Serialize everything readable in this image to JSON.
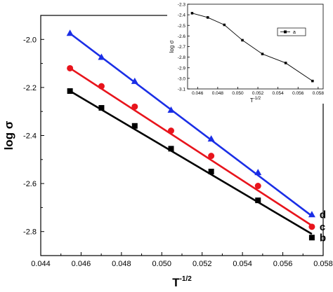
{
  "chart_data": [
    {
      "type": "line",
      "xlabel": "T",
      "xlabel_sup": "-1/2",
      "ylabel": "log σ",
      "xlim": [
        0.044,
        0.058
      ],
      "ylim": [
        -2.9,
        -1.9
      ],
      "x_ticks": [
        "0.044",
        "0.046",
        "0.048",
        "0.050",
        "0.052",
        "0.054",
        "0.056",
        "0.058"
      ],
      "y_ticks": [
        "-2.0",
        "-2.2",
        "-2.4",
        "-2.6",
        "-2.8"
      ],
      "x_tick_values": [
        0.044,
        0.046,
        0.048,
        0.05,
        0.052,
        0.054,
        0.056,
        0.058
      ],
      "y_tick_values": [
        -2.0,
        -2.2,
        -2.4,
        -2.6,
        -2.8
      ],
      "series": [
        {
          "name": "d",
          "marker": "triangle",
          "color": "#1a2ee6",
          "x": [
            0.04545,
            0.04701,
            0.04866,
            0.05046,
            0.05245,
            0.05477,
            0.05744
          ],
          "y": [
            -1.975,
            -2.075,
            -2.175,
            -2.295,
            -2.415,
            -2.555,
            -2.73
          ],
          "fit": [
            [
              0.04545,
              -1.975
            ],
            [
              0.05744,
              -2.735
            ]
          ]
        },
        {
          "name": "c",
          "marker": "circle",
          "color": "#e8141c",
          "x": [
            0.04545,
            0.04701,
            0.04866,
            0.05046,
            0.05245,
            0.05477,
            0.05744
          ],
          "y": [
            -2.12,
            -2.195,
            -2.28,
            -2.38,
            -2.485,
            -2.61,
            -2.78
          ],
          "fit": [
            [
              0.04545,
              -2.12
            ],
            [
              0.05744,
              -2.775
            ]
          ]
        },
        {
          "name": "b",
          "marker": "square",
          "color": "#000000",
          "x": [
            0.04545,
            0.04701,
            0.04866,
            0.05046,
            0.05245,
            0.05477,
            0.05744
          ],
          "y": [
            -2.215,
            -2.285,
            -2.36,
            -2.455,
            -2.55,
            -2.67,
            -2.825
          ],
          "fit": [
            [
              0.04545,
              -2.215
            ],
            [
              0.05744,
              -2.81
            ]
          ]
        }
      ]
    },
    {
      "type": "line",
      "xlabel": "T",
      "xlabel_sup": "-1/2",
      "ylabel": "log σ",
      "xlim": [
        0.045,
        0.0585
      ],
      "ylim": [
        -3.1,
        -2.3
      ],
      "x_ticks": [
        "0.046",
        "0.048",
        "0.050",
        "0.052",
        "0.054",
        "0.056",
        "0.058"
      ],
      "y_ticks": [
        "-2.3",
        "-2.4",
        "-2.5",
        "-2.6",
        "-2.7",
        "-2.8",
        "-2.9",
        "-3.0",
        "-3.1"
      ],
      "x_tick_values": [
        0.046,
        0.048,
        0.05,
        0.052,
        0.054,
        0.056,
        0.058
      ],
      "y_tick_values": [
        -2.3,
        -2.4,
        -2.5,
        -2.6,
        -2.7,
        -2.8,
        -2.9,
        -3.0,
        -3.1
      ],
      "legend": "top-right",
      "series": [
        {
          "name": "a",
          "marker": "square",
          "color": "#000000",
          "x": [
            0.04545,
            0.04701,
            0.04866,
            0.05046,
            0.05245,
            0.05477,
            0.05744
          ],
          "y": [
            -2.385,
            -2.425,
            -2.495,
            -2.64,
            -2.77,
            -2.855,
            -3.025
          ]
        }
      ]
    }
  ]
}
